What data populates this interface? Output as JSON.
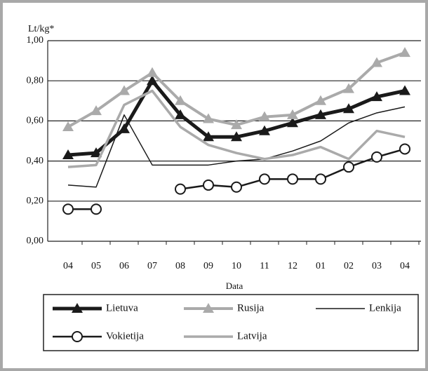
{
  "chart_data": {
    "type": "line",
    "ylabel": "Lt/kg*",
    "xlabel": "Data",
    "categories": [
      "04",
      "05",
      "06",
      "07",
      "08",
      "09",
      "10",
      "11",
      "12",
      "01",
      "02",
      "03",
      "04"
    ],
    "ylim": [
      0,
      1
    ],
    "yticks": [
      {
        "value": 0,
        "label": "0,00"
      },
      {
        "value": 0.2,
        "label": "0,20"
      },
      {
        "value": 0.4,
        "label": "0,40"
      },
      {
        "value": 0.6,
        "label": "0,60"
      },
      {
        "value": 0.8,
        "label": "0,80"
      },
      {
        "value": 1,
        "label": "1,00"
      }
    ],
    "grid": true,
    "series": [
      {
        "name": "Lietuva",
        "color": "#1a1a1a",
        "width": 5,
        "marker": "triangle",
        "values": [
          0.43,
          0.44,
          0.56,
          0.8,
          0.63,
          0.52,
          0.52,
          0.55,
          0.59,
          0.63,
          0.66,
          0.72,
          0.75
        ]
      },
      {
        "name": "Rusija",
        "color": "#aaaaaa",
        "width": 4,
        "marker": "triangle",
        "values": [
          0.57,
          0.65,
          0.75,
          0.84,
          0.7,
          0.61,
          0.58,
          0.62,
          0.63,
          0.7,
          0.76,
          0.89,
          0.94
        ]
      },
      {
        "name": "Lenkija",
        "color": "#1a1a1a",
        "width": 1.5,
        "marker": null,
        "values": [
          0.28,
          0.27,
          0.63,
          0.38,
          0.38,
          0.38,
          0.4,
          0.41,
          0.45,
          0.5,
          0.59,
          0.64,
          0.67
        ]
      },
      {
        "name": "Vokietija",
        "color": "#1a1a1a",
        "width": 2.5,
        "marker": "circle",
        "values": [
          0.16,
          0.16,
          null,
          null,
          0.26,
          0.28,
          0.27,
          0.31,
          0.31,
          0.31,
          0.37,
          0.42,
          0.46
        ]
      },
      {
        "name": "Latvija",
        "color": "#aaaaaa",
        "width": 3.5,
        "marker": null,
        "values": [
          0.37,
          0.38,
          0.68,
          0.75,
          0.57,
          0.48,
          0.44,
          0.41,
          0.43,
          0.47,
          0.41,
          0.55,
          0.52
        ]
      }
    ]
  }
}
